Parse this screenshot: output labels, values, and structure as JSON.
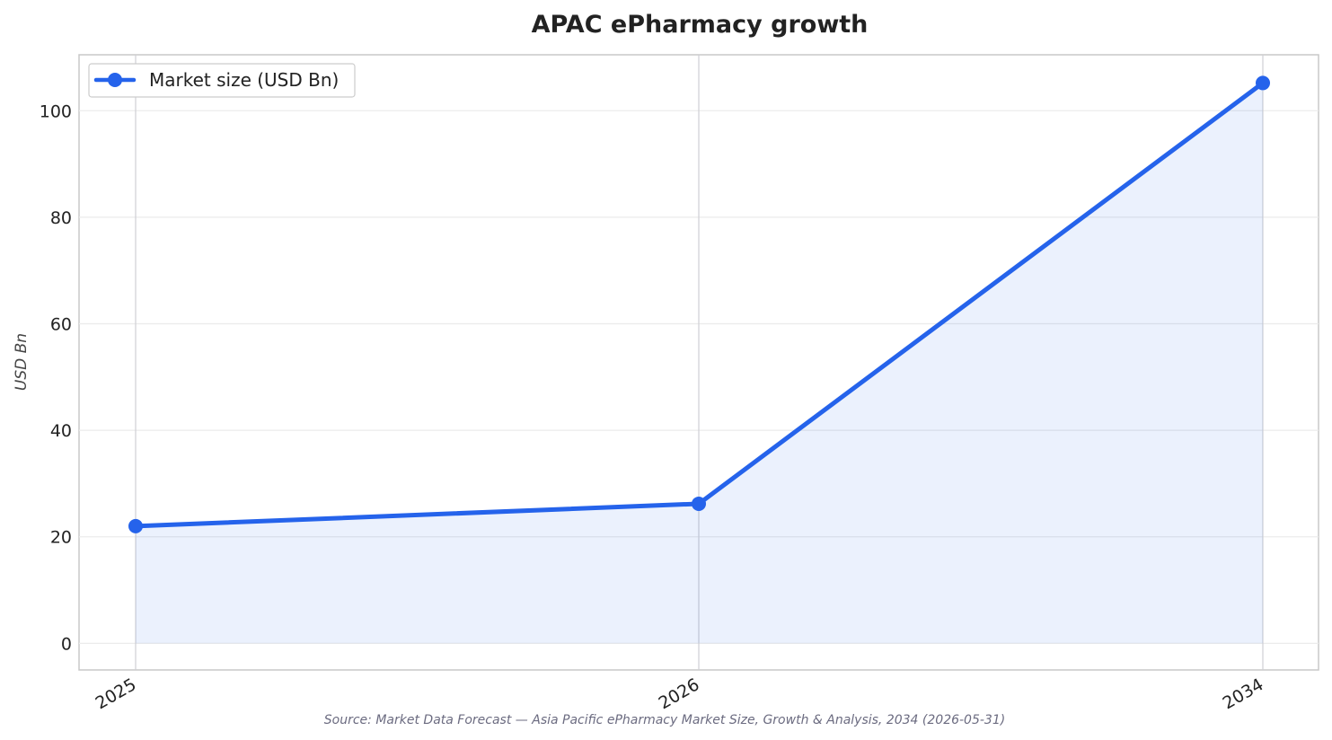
{
  "chart_data": {
    "type": "line",
    "title": "APAC ePharmacy growth",
    "xlabel": "",
    "ylabel": "USD Bn",
    "categories": [
      "2025",
      "2026",
      "2034"
    ],
    "series": [
      {
        "name": "Market size (USD Bn)",
        "values": [
          22.0,
          26.2,
          105.2
        ],
        "color": "#2563eb",
        "fill": true
      }
    ],
    "ylim": [
      -5,
      110.5
    ],
    "yticks": [
      0,
      20,
      40,
      60,
      80,
      100
    ],
    "grid": true,
    "legend": "top-left",
    "source": "Source: Market Data Forecast — Asia Pacific ePharmacy Market Size, Growth & Analysis, 2034 (2026-05-31)"
  }
}
